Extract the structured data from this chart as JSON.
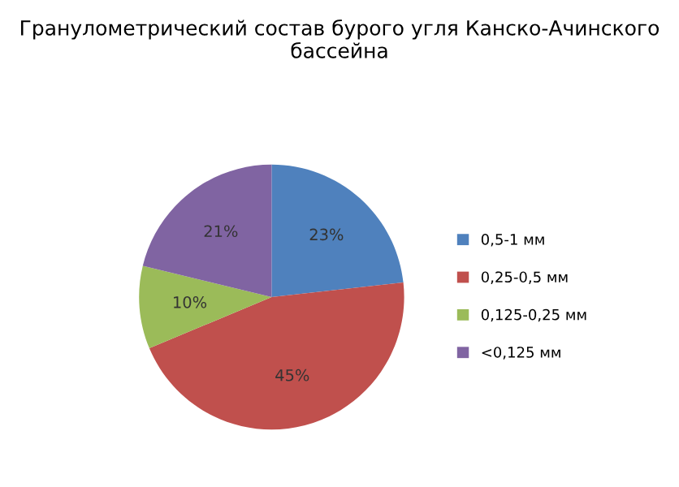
{
  "chart_data": {
    "type": "pie",
    "title": "Гранулометрический состав бурого угля Канско-Ачинского бассейна",
    "categories": [
      "0,5-1 мм",
      "0,25-0,5 мм",
      "0,125-0,25 мм",
      "<0,125 мм"
    ],
    "values": [
      23,
      45,
      10,
      21
    ],
    "value_labels": [
      "23%",
      "45%",
      "10%",
      "21%"
    ],
    "colors": [
      "#4f81bd",
      "#c0504d",
      "#9bbb59",
      "#8064a2"
    ],
    "legend": "right"
  }
}
